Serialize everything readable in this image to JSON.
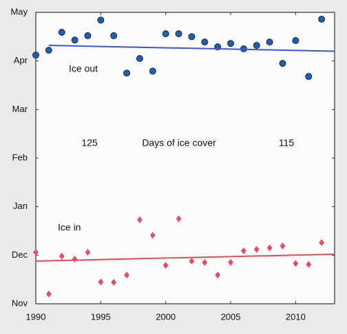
{
  "chart_data": {
    "type": "scatter",
    "xlim": [
      1990,
      2013
    ],
    "xticks": [
      1990,
      1995,
      2000,
      2005,
      2010
    ],
    "ylim": [
      0,
      6
    ],
    "yticks": [
      {
        "value": 0,
        "label": "Nov"
      },
      {
        "value": 1,
        "label": "Dec"
      },
      {
        "value": 2,
        "label": "Jan"
      },
      {
        "value": 3,
        "label": "Feb"
      },
      {
        "value": 4,
        "label": "Mar"
      },
      {
        "value": 5,
        "label": "Apr"
      },
      {
        "value": 6,
        "label": "May"
      }
    ],
    "annotations": [
      "Ice out",
      "125",
      "Days of ice cover",
      "115",
      "Ice in"
    ],
    "series": [
      {
        "marker": "circle",
        "color": "#1f5fb0",
        "x": [
          1990,
          1991,
          1992,
          1993,
          1994,
          1995,
          1996,
          1997,
          1998,
          1999,
          2000,
          2001,
          2002,
          2003,
          2004,
          2005,
          2006,
          2007,
          2008,
          2009,
          2010,
          2011,
          2012
        ],
        "values": [
          5.12,
          5.22,
          5.59,
          5.43,
          5.52,
          5.84,
          5.52,
          4.75,
          5.05,
          4.79,
          5.56,
          5.56,
          5.5,
          5.39,
          5.29,
          5.36,
          5.25,
          5.32,
          5.39,
          4.95,
          5.42,
          4.68,
          5.86
        ]
      },
      {
        "marker": "diamond",
        "color": "#e0506a",
        "x": [
          1990,
          1991,
          1992,
          1993,
          1994,
          1995,
          1996,
          1997,
          1998,
          1999,
          2000,
          2001,
          2002,
          2003,
          2004,
          2005,
          2006,
          2007,
          2008,
          2009,
          2010,
          2011,
          2012
        ],
        "values": [
          1.06,
          0.2,
          0.98,
          0.92,
          1.06,
          0.45,
          0.44,
          0.59,
          1.73,
          1.41,
          0.79,
          1.75,
          0.88,
          0.85,
          0.59,
          0.85,
          1.09,
          1.12,
          1.15,
          1.19,
          0.83,
          0.81,
          1.26
        ]
      },
      {
        "marker": "line",
        "color": "#3a55e0",
        "x": [
          1991,
          2013
        ],
        "values": [
          5.32,
          5.2
        ]
      },
      {
        "marker": "line",
        "color": "#e84a5a",
        "x": [
          1990,
          2013
        ],
        "values": [
          0.88,
          1.02
        ]
      }
    ]
  }
}
